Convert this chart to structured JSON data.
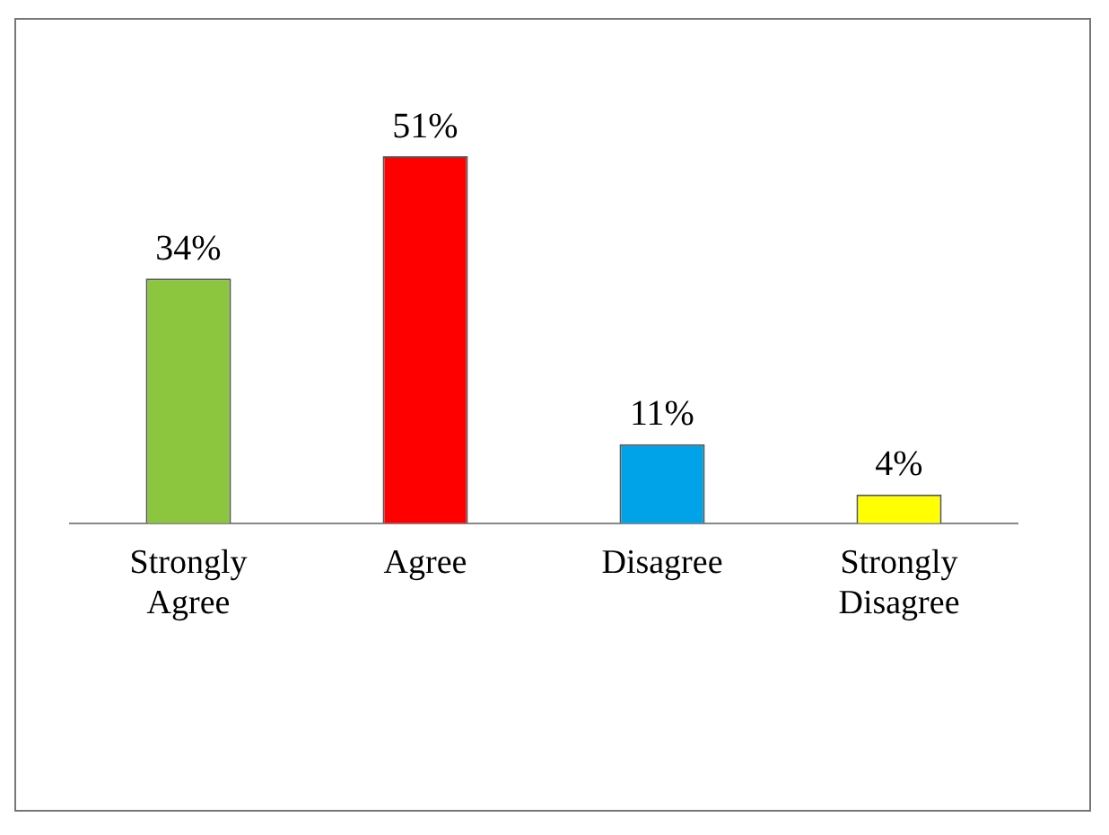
{
  "chart_data": {
    "type": "bar",
    "categories": [
      "Strongly Agree",
      "Agree",
      "Disagree",
      "Strongly Disagree"
    ],
    "values": [
      34,
      51,
      11,
      4
    ],
    "colors": [
      "#8cc63e",
      "#ff0000",
      "#00a2e8",
      "#ffff00"
    ],
    "value_labels": [
      "34%",
      "51%",
      "11%",
      "4%"
    ],
    "grid": false,
    "legend": false
  }
}
